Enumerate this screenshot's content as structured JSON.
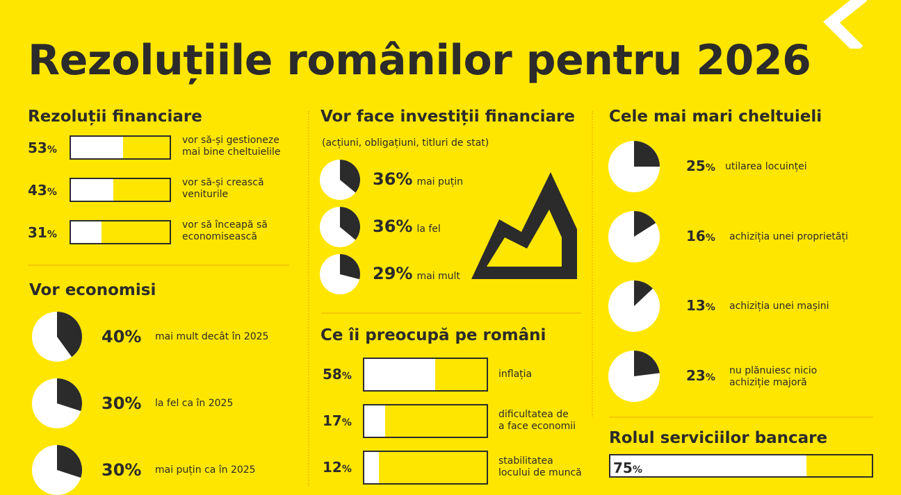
{
  "title": "Rezoluțiile românilor pentru 2026",
  "colors": {
    "background": "#FFE600",
    "dark": "#2B2B2B",
    "light": "#FFFFFF"
  },
  "chart_data": [
    {
      "type": "bar",
      "title": "Rezoluții financiare",
      "categories": [
        "vor să-și gestioneze\nmai bine cheltuielile",
        "vor să-și crească\nveniturile",
        "vor să înceapă să\neconomisească"
      ],
      "values": [
        53,
        43,
        31
      ],
      "unit": "%",
      "ylim": [
        0,
        100
      ]
    },
    {
      "type": "pie",
      "title": "Vor economisi",
      "categories": [
        "mai mult decât în 2025",
        "la fel ca în 2025",
        "mai puțin ca în 2025"
      ],
      "values": [
        40,
        30,
        30
      ],
      "unit": "%"
    },
    {
      "type": "pie",
      "title": "Vor face investiții financiare",
      "subtitle": "(acțiuni, obligațiuni, titluri de stat)",
      "categories": [
        "mai puțin",
        "la fel",
        "mai mult"
      ],
      "values": [
        36,
        36,
        29
      ],
      "unit": "%"
    },
    {
      "type": "bar",
      "title": "Ce îi preocupă pe români",
      "categories": [
        "inflația",
        "dificultatea de\na face economii",
        "stabilitatea\nlocului de muncă"
      ],
      "values": [
        58,
        17,
        12
      ],
      "unit": "%",
      "ylim": [
        0,
        100
      ]
    },
    {
      "type": "pie",
      "title": "Cele mai mari cheltuieli",
      "categories": [
        "utilarea locuinței",
        "achiziția unei proprietăți",
        "achiziția unei mașini",
        "nu plănuiesc nicio\nachiziție majoră"
      ],
      "values": [
        25,
        16,
        13,
        23
      ],
      "unit": "%"
    },
    {
      "type": "bar",
      "title": "Rolul serviciilor bancare",
      "values": [
        75
      ],
      "unit": "%",
      "ylim": [
        0,
        100
      ]
    }
  ]
}
